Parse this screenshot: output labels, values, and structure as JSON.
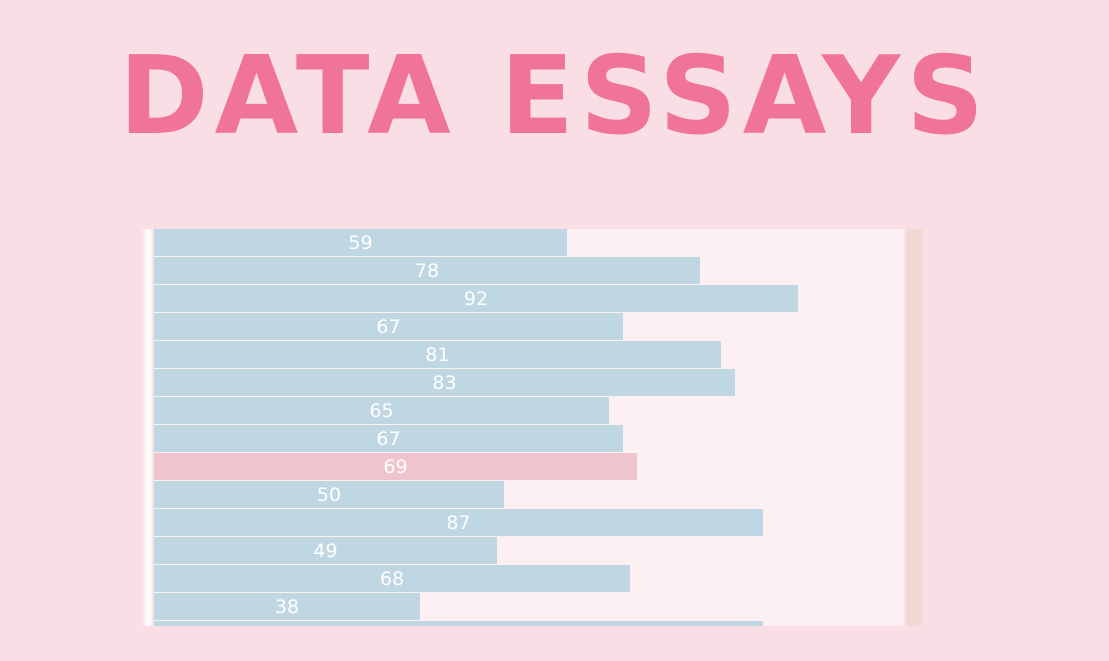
{
  "page": {
    "title": "DATA ESSAYS"
  },
  "colors": {
    "background": "#f9dee6",
    "title": "#ef7497",
    "bar_default": "#bfd7e2",
    "bar_highlight": "#f0c4cd",
    "label": "#ffffff",
    "plot_background": "#fcf0f2"
  },
  "chart_data": {
    "type": "bar",
    "orientation": "horizontal",
    "values": [
      59,
      78,
      92,
      67,
      81,
      83,
      65,
      67,
      69,
      50,
      87,
      49,
      68,
      38,
      87
    ],
    "value_labels": [
      "59",
      "78",
      "92",
      "67",
      "81",
      "83",
      "65",
      "67",
      "69",
      "50",
      "87",
      "49",
      "68",
      "38",
      ""
    ],
    "highlighted_index": 8,
    "xlim": [
      0,
      100
    ],
    "grid": false,
    "legend": "none"
  }
}
